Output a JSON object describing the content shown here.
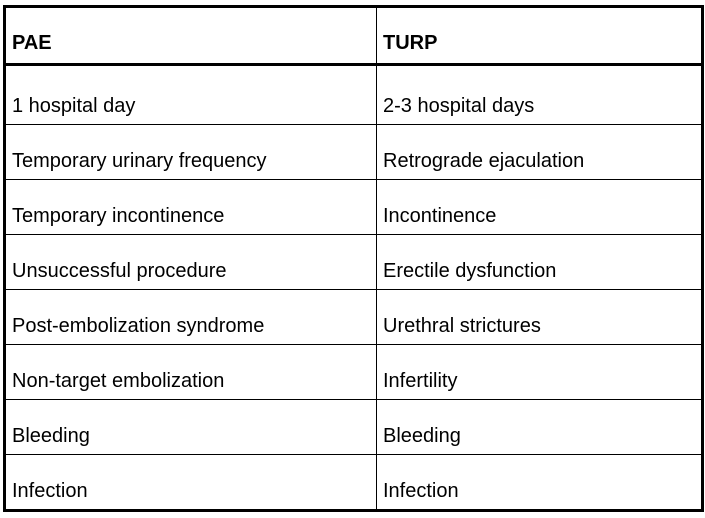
{
  "table": {
    "columns": [
      "PAE",
      "TURP"
    ],
    "rows": [
      [
        "1 hospital day",
        "2-3 hospital days"
      ],
      [
        "Temporary urinary frequency",
        "Retrograde ejaculation"
      ],
      [
        "Temporary incontinence",
        "Incontinence"
      ],
      [
        "Unsuccessful procedure",
        "Erectile dysfunction"
      ],
      [
        "Post-embolization syndrome",
        "Urethral strictures"
      ],
      [
        "Non-target embolization",
        "Infertility"
      ],
      [
        "Bleeding",
        "Bleeding"
      ],
      [
        "Infection",
        "Infection"
      ]
    ]
  }
}
